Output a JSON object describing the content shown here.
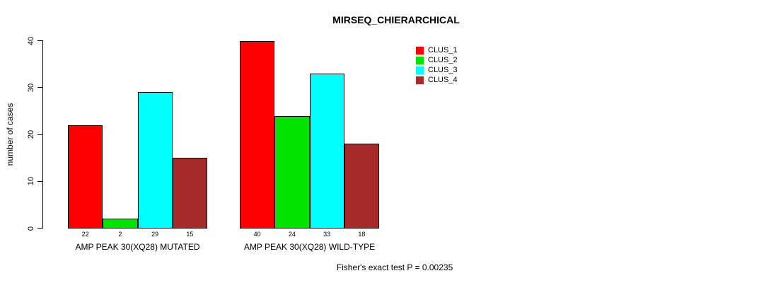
{
  "chart_data": {
    "type": "bar",
    "title": "MIRSEQ_CHIERARCHICAL",
    "ylabel": "number of cases",
    "ylim": [
      0,
      40
    ],
    "yticks": [
      0,
      10,
      20,
      30,
      40
    ],
    "categories": [
      "AMP PEAK 30(XQ28) MUTATED",
      "AMP PEAK 30(XQ28) WILD-TYPE"
    ],
    "series": [
      {
        "name": "CLUS_1",
        "color": "#FF0000",
        "values": [
          22,
          40
        ]
      },
      {
        "name": "CLUS_2",
        "color": "#00E400",
        "values": [
          2,
          24
        ]
      },
      {
        "name": "CLUS_3",
        "color": "#00FFFF",
        "values": [
          29,
          33
        ]
      },
      {
        "name": "CLUS_4",
        "color": "#A52A2A",
        "values": [
          15,
          18
        ]
      }
    ],
    "show_value_labels": true,
    "grid": false,
    "legend_position": "top-right",
    "annotation": "Fisher's exact test P = 0.00235"
  }
}
